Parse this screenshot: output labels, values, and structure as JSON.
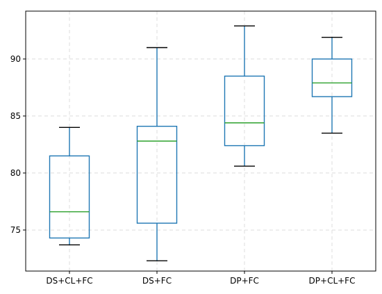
{
  "chart_data": {
    "type": "box",
    "categories": [
      "DS+CL+FC",
      "DS+FC",
      "DP+FC",
      "DP+CL+FC"
    ],
    "boxes": [
      {
        "category": "DS+CL+FC",
        "whisker_low": 73.7,
        "q1": 74.3,
        "median": 76.6,
        "q3": 81.5,
        "whisker_high": 84.0
      },
      {
        "category": "DS+FC",
        "whisker_low": 72.3,
        "q1": 75.6,
        "median": 82.8,
        "q3": 84.1,
        "whisker_high": 91.0
      },
      {
        "category": "DP+FC",
        "whisker_low": 80.6,
        "q1": 82.4,
        "median": 84.4,
        "q3": 88.5,
        "whisker_high": 92.9
      },
      {
        "category": "DP+CL+FC",
        "whisker_low": 83.5,
        "q1": 86.7,
        "median": 87.9,
        "q3": 90.0,
        "whisker_high": 91.9
      }
    ],
    "title": "",
    "xlabel": "",
    "ylabel": "",
    "ylim": [
      71.4,
      94.2
    ],
    "yticks": [
      75,
      80,
      85,
      90
    ],
    "grid": true,
    "colors": {
      "box": "#1f77b4",
      "median": "#2ca02c",
      "whisker": "#1f77b4",
      "cap": "#000000",
      "grid": "#dcdcdc",
      "axis": "#000000"
    }
  }
}
